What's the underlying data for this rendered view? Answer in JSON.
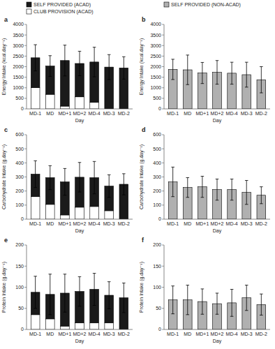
{
  "chart_data": [
    {
      "type": "bar",
      "stacked": true,
      "title": "a",
      "xlabel": "Day",
      "ylabel": "Energy Intake (kcal.day⁻¹)",
      "categories": [
        "MD-1",
        "MD",
        "MD+1",
        "MD+2",
        "MD-4",
        "MD-3",
        "MD-2"
      ],
      "series": [
        {
          "name": "CLUB PROVISION (ACAD)",
          "color": "#ffffff",
          "values": [
            1010,
            690,
            130,
            570,
            310,
            0,
            0
          ]
        },
        {
          "name": "SELF PROVIDED (ACAD)",
          "color": "#1a1a1a",
          "values": [
            1410,
            1340,
            2160,
            1580,
            1910,
            1980,
            1940
          ],
          "errors": [
            620,
            490,
            730,
            580,
            700,
            590,
            530
          ]
        }
      ],
      "ylim": [
        0,
        4000
      ],
      "yticks": [
        0,
        500,
        1000,
        1500,
        2000,
        2500,
        3000,
        3500,
        4000
      ],
      "grid": false,
      "legend": "upper left"
    },
    {
      "type": "bar",
      "title": "b",
      "xlabel": "Day",
      "ylabel": "Energy Intake (kcal.day⁻¹)",
      "categories": [
        "MD-1",
        "MD",
        "MD+1",
        "MD+2",
        "MD-4",
        "MD-3",
        "MD-2"
      ],
      "series": [
        {
          "name": "SELF PROVIDED (NON-ACAD)",
          "color": "#b0b0b0",
          "values": [
            1870,
            1850,
            1700,
            1730,
            1690,
            1620,
            1380
          ],
          "errors": [
            480,
            700,
            500,
            560,
            520,
            590,
            620
          ]
        }
      ],
      "ylim": [
        0,
        4000
      ],
      "yticks": [
        0,
        500,
        1000,
        1500,
        2000,
        2500,
        3000,
        3500,
        4000
      ],
      "grid": false,
      "legend": "upper left"
    },
    {
      "type": "bar",
      "stacked": true,
      "title": "c",
      "xlabel": "Day",
      "ylabel": "Carbohydrate Intake (g.day⁻¹)",
      "categories": [
        "MD-1",
        "MD",
        "MD+1",
        "MD+2",
        "MD-4",
        "MD-3",
        "MD-2"
      ],
      "series": [
        {
          "color": "#ffffff",
          "values": [
            160,
            105,
            30,
            85,
            90,
            60,
            0
          ]
        },
        {
          "color": "#1a1a1a",
          "values": [
            160,
            190,
            235,
            213,
            205,
            175,
            248
          ],
          "errors": [
            95,
            85,
            95,
            105,
            115,
            80,
            75
          ]
        }
      ],
      "ylim": [
        0,
        600
      ],
      "yticks": [
        0,
        100,
        200,
        300,
        400,
        500,
        600
      ],
      "grid": false
    },
    {
      "type": "bar",
      "title": "d",
      "xlabel": "Day",
      "ylabel": "Carbohydrate Intake (g.day⁻¹)",
      "categories": [
        "MD-1",
        "MD",
        "MD+1",
        "MD+2",
        "MD-4",
        "MD-3",
        "MD-2"
      ],
      "series": [
        {
          "color": "#b0b0b0",
          "values": [
            265,
            225,
            230,
            210,
            210,
            190,
            170
          ],
          "errors": [
            105,
            70,
            75,
            75,
            75,
            85,
            60
          ]
        }
      ],
      "ylim": [
        0,
        600
      ],
      "yticks": [
        0,
        100,
        200,
        300,
        400,
        500,
        600
      ],
      "grid": false
    },
    {
      "type": "bar",
      "stacked": true,
      "title": "e",
      "xlabel": "Day",
      "ylabel": "Protein Intake (g.day⁻¹)",
      "categories": [
        "MD-1",
        "MD",
        "MD+1",
        "MD+2",
        "MD-4",
        "MD-3",
        "MD-2"
      ],
      "series": [
        {
          "color": "#ffffff",
          "values": [
            35,
            25,
            8,
            16,
            16,
            16,
            0
          ]
        },
        {
          "color": "#1a1a1a",
          "values": [
            53,
            58,
            78,
            74,
            79,
            65,
            75
          ],
          "errors": [
            38,
            48,
            45,
            35,
            38,
            32,
            35
          ]
        }
      ],
      "ylim": [
        0,
        200
      ],
      "yticks": [
        0,
        50,
        100,
        150,
        200
      ],
      "grid": false
    },
    {
      "type": "bar",
      "title": "f",
      "xlabel": "Day",
      "ylabel": "Protein Intake (g.day⁻¹)",
      "categories": [
        "MD-1",
        "MD",
        "MD+1",
        "MD+2",
        "MD-4",
        "MD-3",
        "MD-2"
      ],
      "series": [
        {
          "color": "#b0b0b0",
          "values": [
            70,
            70,
            66,
            61,
            63,
            75,
            59
          ],
          "errors": [
            33,
            35,
            30,
            25,
            32,
            30,
            25
          ]
        }
      ],
      "ylim": [
        0,
        200
      ],
      "yticks": [
        0,
        50,
        100,
        150,
        200
      ],
      "grid": false
    }
  ]
}
